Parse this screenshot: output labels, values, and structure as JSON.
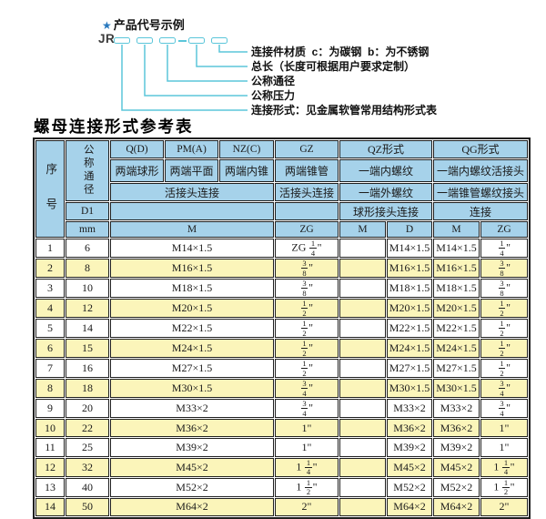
{
  "diagram": {
    "title": "产品代号示例",
    "star_icon": "★",
    "prefix": "JR",
    "labels": [
      "连接件材质  c：为碳钢  b：为不锈钢",
      "总长（长度可根据用户要求定制）",
      "公称通径",
      "公称压力",
      "连接形式：见金属软管常用结构形式表"
    ]
  },
  "table": {
    "title": "螺母连接形式参考表",
    "header": {
      "seq": "序号",
      "dn": "公称通径",
      "d1": "D1",
      "mm": "mm",
      "col_q": "Q(D)",
      "col_pm": "PM(A)",
      "col_nz": "NZ(C)",
      "col_gz": "GZ",
      "col_qz": "QZ形式",
      "col_qg": "QG形式",
      "q_desc": "两端球形",
      "pm_desc": "两端平面",
      "nz_desc": "两端内锥",
      "gz_desc": "两端锥管",
      "qz_desc1": "一端内螺纹",
      "qg_desc1": "一端内螺纹活接头",
      "union_label": "活接头连接",
      "gz_union_label": "活接头连接",
      "qz_desc2": "一端外螺纹",
      "qg_desc2": "一端锥管螺纹接头",
      "qz_conn": "球形接头连接",
      "qg_conn": "连接",
      "m_label": "M",
      "zg_label": "ZG",
      "qz_m_label": "M",
      "qz_d_label": "D",
      "qg_m_label": "M",
      "qg_zg_label": "ZG"
    },
    "rows": [
      [
        "1",
        "6",
        "M14×1.5",
        "ZG 1/4\"",
        "",
        "M14×1.5",
        "M14×1.5",
        "1/4\""
      ],
      [
        "2",
        "8",
        "M16×1.5",
        "3/8\"",
        "",
        "M16×1.5",
        "M16×1.5",
        "3/8\""
      ],
      [
        "3",
        "10",
        "M18×1.5",
        "3/8\"",
        "",
        "M18×1.5",
        "M18×1.5",
        "3/8\""
      ],
      [
        "4",
        "12",
        "M20×1.5",
        "1/2\"",
        "",
        "M20×1.5",
        "M20×1.5",
        "1/2\""
      ],
      [
        "5",
        "14",
        "M22×1.5",
        "1/2\"",
        "",
        "M22×1.5",
        "M22×1.5",
        "1/2\""
      ],
      [
        "6",
        "15",
        "M24×1.5",
        "1/2\"",
        "",
        "M24×1.5",
        "M24×1.5",
        "1/2\""
      ],
      [
        "7",
        "16",
        "M27×1.5",
        "1/2\"",
        "",
        "M27×1.5",
        "M27×1.5",
        "1/2\""
      ],
      [
        "8",
        "18",
        "M30×1.5",
        "3/4\"",
        "",
        "M30×1.5",
        "M30×1.5",
        "3/4\""
      ],
      [
        "9",
        "20",
        "M33×2",
        "3/4\"",
        "",
        "M33×2",
        "M33×2",
        "3/4\""
      ],
      [
        "10",
        "22",
        "M36×2",
        "1\"",
        "",
        "M36×2",
        "M36×2",
        "1\""
      ],
      [
        "11",
        "25",
        "M39×2",
        "1\"",
        "",
        "M39×2",
        "M39×2",
        "1\""
      ],
      [
        "12",
        "32",
        "M45×2",
        "1 1/4\"",
        "",
        "M45×2",
        "M45×2",
        "1 1/4\""
      ],
      [
        "13",
        "40",
        "M52×2",
        "1 1/2\"",
        "",
        "M52×2",
        "M52×2",
        "1 1/2\""
      ],
      [
        "14",
        "50",
        "M64×2",
        "2\"",
        "",
        "M64×2",
        "M64×2",
        "2\""
      ]
    ]
  },
  "colors": {
    "header_bg": "#a6d2ea",
    "alt_row_bg": "#fbf5ba",
    "diagram_line": "#5bc6da",
    "star_blue": "#2878be",
    "border": "#1f1f1f"
  }
}
